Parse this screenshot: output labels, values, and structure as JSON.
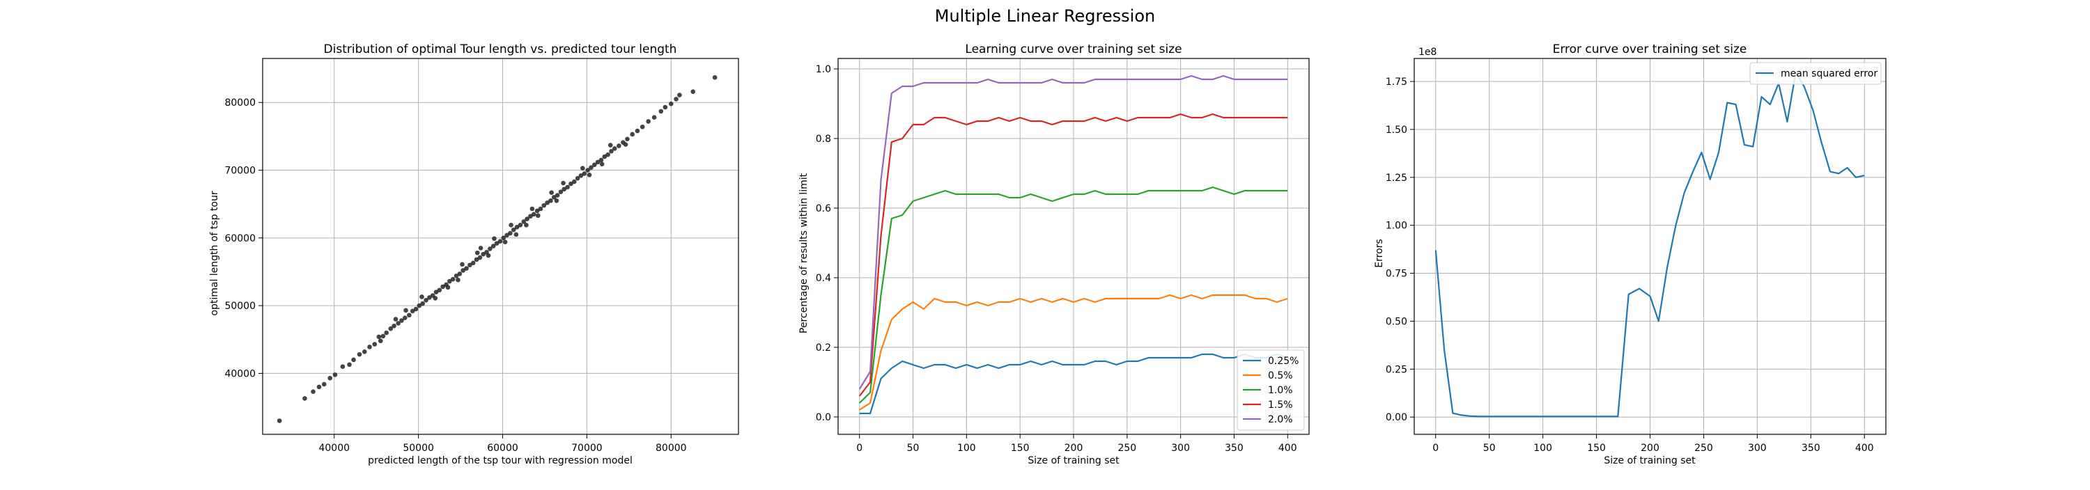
{
  "figure": {
    "suptitle": "Multiple Linear Regression"
  },
  "chart_data": [
    {
      "type": "scatter",
      "title": "Distribution of optimal Tour length vs. predicted tour length",
      "xlabel": "predicted length of the tsp tour with regression model",
      "ylabel": "optimal length of tsp tour",
      "xlim": [
        31500,
        88000
      ],
      "ylim": [
        31000,
        86500
      ],
      "xticks": [
        40000,
        50000,
        60000,
        70000,
        80000
      ],
      "yticks": [
        40000,
        50000,
        60000,
        70000,
        80000
      ],
      "xtick_labels": [
        "40000",
        "50000",
        "60000",
        "70000",
        "80000"
      ],
      "ytick_labels": [
        "40000",
        "50000",
        "60000",
        "70000",
        "80000"
      ],
      "grid": true,
      "color": "#222222",
      "points": [
        [
          33500,
          33000
        ],
        [
          36500,
          36300
        ],
        [
          37500,
          37300
        ],
        [
          38200,
          38000
        ],
        [
          38800,
          38400
        ],
        [
          39500,
          39300
        ],
        [
          40100,
          39800
        ],
        [
          41000,
          41000
        ],
        [
          41800,
          41300
        ],
        [
          42300,
          42000
        ],
        [
          43000,
          42800
        ],
        [
          43600,
          43200
        ],
        [
          44200,
          43900
        ],
        [
          44800,
          44300
        ],
        [
          45300,
          45400
        ],
        [
          45800,
          45500
        ],
        [
          46200,
          46000
        ],
        [
          46700,
          46600
        ],
        [
          47100,
          47000
        ],
        [
          47600,
          47400
        ],
        [
          48000,
          47800
        ],
        [
          48400,
          48200
        ],
        [
          48900,
          48600
        ],
        [
          49300,
          49200
        ],
        [
          49700,
          49500
        ],
        [
          50100,
          50000
        ],
        [
          50500,
          50300
        ],
        [
          50900,
          50800
        ],
        [
          51300,
          51200
        ],
        [
          51700,
          51500
        ],
        [
          52100,
          52000
        ],
        [
          52500,
          52300
        ],
        [
          52900,
          52800
        ],
        [
          53300,
          53100
        ],
        [
          53700,
          53600
        ],
        [
          54100,
          53900
        ],
        [
          54500,
          54400
        ],
        [
          54900,
          54700
        ],
        [
          55300,
          55200
        ],
        [
          55700,
          55500
        ],
        [
          56100,
          56000
        ],
        [
          56500,
          56300
        ],
        [
          56900,
          56800
        ],
        [
          57300,
          57100
        ],
        [
          57700,
          57600
        ],
        [
          58100,
          57900
        ],
        [
          58500,
          58400
        ],
        [
          58900,
          58800
        ],
        [
          59300,
          59200
        ],
        [
          59700,
          59500
        ],
        [
          60100,
          60000
        ],
        [
          60500,
          60400
        ],
        [
          60900,
          60700
        ],
        [
          61300,
          61200
        ],
        [
          61700,
          61600
        ],
        [
          62100,
          61900
        ],
        [
          62500,
          62400
        ],
        [
          62900,
          62800
        ],
        [
          63300,
          63200
        ],
        [
          63700,
          63500
        ],
        [
          64100,
          64000
        ],
        [
          64500,
          64300
        ],
        [
          64900,
          64800
        ],
        [
          65300,
          65200
        ],
        [
          65700,
          65500
        ],
        [
          66100,
          66000
        ],
        [
          66500,
          66300
        ],
        [
          66900,
          66800
        ],
        [
          67300,
          67200
        ],
        [
          67700,
          67500
        ],
        [
          68100,
          68000
        ],
        [
          68500,
          68300
        ],
        [
          68900,
          68800
        ],
        [
          69300,
          69200
        ],
        [
          69700,
          69500
        ],
        [
          70100,
          70000
        ],
        [
          70500,
          70400
        ],
        [
          70900,
          70800
        ],
        [
          71300,
          71200
        ],
        [
          71700,
          71500
        ],
        [
          72100,
          72000
        ],
        [
          72500,
          72300
        ],
        [
          72900,
          72800
        ],
        [
          73300,
          73200
        ],
        [
          73800,
          73600
        ],
        [
          74300,
          74100
        ],
        [
          74800,
          74600
        ],
        [
          75400,
          75300
        ],
        [
          76000,
          75800
        ],
        [
          76600,
          76400
        ],
        [
          77300,
          77200
        ],
        [
          78000,
          77800
        ],
        [
          78800,
          78700
        ],
        [
          79300,
          79300
        ],
        [
          80000,
          79800
        ],
        [
          80600,
          80500
        ],
        [
          81000,
          81100
        ],
        [
          82600,
          81600
        ],
        [
          85200,
          83700
        ],
        [
          45500,
          44800
        ],
        [
          48500,
          49300
        ],
        [
          52000,
          51100
        ],
        [
          55200,
          56100
        ],
        [
          58300,
          57400
        ],
        [
          61000,
          61900
        ],
        [
          64200,
          63300
        ],
        [
          67200,
          68100
        ],
        [
          70300,
          69300
        ],
        [
          72800,
          73700
        ],
        [
          47300,
          48000
        ],
        [
          53500,
          52700
        ],
        [
          57000,
          57800
        ],
        [
          60300,
          59400
        ],
        [
          63500,
          64300
        ],
        [
          66400,
          65500
        ],
        [
          69500,
          70300
        ],
        [
          74600,
          73800
        ],
        [
          50400,
          51300
        ],
        [
          54700,
          53800
        ],
        [
          59000,
          59900
        ],
        [
          62800,
          61900
        ],
        [
          65800,
          66700
        ],
        [
          71800,
          70900
        ],
        [
          57400,
          58500
        ],
        [
          61600,
          60500
        ]
      ]
    },
    {
      "type": "line",
      "title": "Learning curve over training set size",
      "xlabel": "Size of training set",
      "ylabel": "Percentage of results within limit",
      "xlim": [
        -20,
        420
      ],
      "ylim": [
        -0.05,
        1.03
      ],
      "xticks": [
        0,
        50,
        100,
        150,
        200,
        250,
        300,
        350,
        400
      ],
      "yticks": [
        0.0,
        0.2,
        0.4,
        0.6,
        0.8,
        1.0
      ],
      "xtick_labels": [
        "0",
        "50",
        "100",
        "150",
        "200",
        "250",
        "300",
        "350",
        "400"
      ],
      "ytick_labels": [
        "0.0",
        "0.2",
        "0.4",
        "0.6",
        "0.8",
        "1.0"
      ],
      "grid": true,
      "legend_position": "lower-right",
      "x": [
        0,
        10,
        20,
        30,
        40,
        50,
        60,
        70,
        80,
        90,
        100,
        110,
        120,
        130,
        140,
        150,
        160,
        170,
        180,
        190,
        200,
        210,
        220,
        230,
        240,
        250,
        260,
        270,
        280,
        290,
        300,
        310,
        320,
        330,
        340,
        350,
        360,
        370,
        380,
        390,
        400
      ],
      "series": [
        {
          "name": "0.25%",
          "color": "#1f77b4",
          "values": [
            0.01,
            0.01,
            0.11,
            0.14,
            0.16,
            0.15,
            0.14,
            0.15,
            0.15,
            0.14,
            0.15,
            0.14,
            0.15,
            0.14,
            0.15,
            0.15,
            0.16,
            0.15,
            0.16,
            0.15,
            0.15,
            0.15,
            0.16,
            0.16,
            0.15,
            0.16,
            0.16,
            0.17,
            0.17,
            0.17,
            0.17,
            0.17,
            0.18,
            0.18,
            0.17,
            0.17,
            0.18,
            0.17,
            0.17,
            0.18,
            0.17
          ]
        },
        {
          "name": "0.5%",
          "color": "#ff7f0e",
          "values": [
            0.02,
            0.04,
            0.19,
            0.28,
            0.31,
            0.33,
            0.31,
            0.34,
            0.33,
            0.33,
            0.32,
            0.33,
            0.32,
            0.33,
            0.33,
            0.34,
            0.33,
            0.34,
            0.33,
            0.34,
            0.33,
            0.34,
            0.33,
            0.34,
            0.34,
            0.34,
            0.34,
            0.34,
            0.34,
            0.35,
            0.34,
            0.35,
            0.34,
            0.35,
            0.35,
            0.35,
            0.35,
            0.34,
            0.34,
            0.33,
            0.34
          ]
        },
        {
          "name": "1.0%",
          "color": "#2ca02c",
          "values": [
            0.04,
            0.07,
            0.35,
            0.57,
            0.58,
            0.62,
            0.63,
            0.64,
            0.65,
            0.64,
            0.64,
            0.64,
            0.64,
            0.64,
            0.63,
            0.63,
            0.64,
            0.63,
            0.62,
            0.63,
            0.64,
            0.64,
            0.65,
            0.64,
            0.64,
            0.64,
            0.64,
            0.65,
            0.65,
            0.65,
            0.65,
            0.65,
            0.65,
            0.66,
            0.65,
            0.64,
            0.65,
            0.65,
            0.65,
            0.65,
            0.65
          ]
        },
        {
          "name": "1.5%",
          "color": "#d62728",
          "values": [
            0.06,
            0.1,
            0.52,
            0.79,
            0.8,
            0.84,
            0.84,
            0.86,
            0.86,
            0.85,
            0.84,
            0.85,
            0.85,
            0.86,
            0.85,
            0.86,
            0.85,
            0.85,
            0.84,
            0.85,
            0.85,
            0.85,
            0.86,
            0.85,
            0.86,
            0.85,
            0.86,
            0.86,
            0.86,
            0.86,
            0.87,
            0.86,
            0.86,
            0.87,
            0.86,
            0.86,
            0.86,
            0.86,
            0.86,
            0.86,
            0.86
          ]
        },
        {
          "name": "2.0%",
          "color": "#9467bd",
          "values": [
            0.08,
            0.13,
            0.68,
            0.93,
            0.95,
            0.95,
            0.96,
            0.96,
            0.96,
            0.96,
            0.96,
            0.96,
            0.97,
            0.96,
            0.96,
            0.96,
            0.96,
            0.96,
            0.97,
            0.96,
            0.96,
            0.96,
            0.97,
            0.97,
            0.97,
            0.97,
            0.97,
            0.97,
            0.97,
            0.97,
            0.97,
            0.98,
            0.97,
            0.97,
            0.98,
            0.97,
            0.97,
            0.97,
            0.97,
            0.97,
            0.97
          ]
        }
      ]
    },
    {
      "type": "line",
      "title": "Error curve over training set size",
      "xlabel": "Size of training set",
      "ylabel": "Errors",
      "offset_label": "1e8",
      "xlim": [
        -20,
        420
      ],
      "ylim": [
        -0.09,
        1.87
      ],
      "xticks": [
        0,
        50,
        100,
        150,
        200,
        250,
        300,
        350,
        400
      ],
      "yticks": [
        0.0,
        0.25,
        0.5,
        0.75,
        1.0,
        1.25,
        1.5,
        1.75
      ],
      "xtick_labels": [
        "0",
        "50",
        "100",
        "150",
        "200",
        "250",
        "300",
        "350",
        "400"
      ],
      "ytick_labels": [
        "0.00",
        "0.25",
        "0.50",
        "0.75",
        "1.00",
        "1.25",
        "1.50",
        "1.75"
      ],
      "grid": true,
      "legend_position": "upper-right",
      "x": [
        0,
        8,
        16,
        24,
        32,
        40,
        50,
        60,
        70,
        80,
        90,
        100,
        110,
        120,
        130,
        140,
        150,
        160,
        170,
        180,
        190,
        200,
        208,
        216,
        224,
        232,
        240,
        248,
        256,
        264,
        272,
        280,
        288,
        296,
        304,
        312,
        320,
        328,
        336,
        344,
        352,
        360,
        368,
        376,
        384,
        392,
        400
      ],
      "series": [
        {
          "name": "mean squared error",
          "color": "#1f77b4",
          "values": [
            0.87,
            0.35,
            0.02,
            0.01,
            0.005,
            0.003,
            0.003,
            0.003,
            0.003,
            0.003,
            0.003,
            0.003,
            0.003,
            0.003,
            0.003,
            0.003,
            0.003,
            0.003,
            0.003,
            0.64,
            0.67,
            0.63,
            0.5,
            0.78,
            1.0,
            1.17,
            1.28,
            1.38,
            1.24,
            1.38,
            1.64,
            1.63,
            1.42,
            1.41,
            1.67,
            1.63,
            1.74,
            1.54,
            1.8,
            1.72,
            1.6,
            1.43,
            1.28,
            1.27,
            1.3,
            1.25,
            1.26
          ]
        }
      ]
    }
  ]
}
